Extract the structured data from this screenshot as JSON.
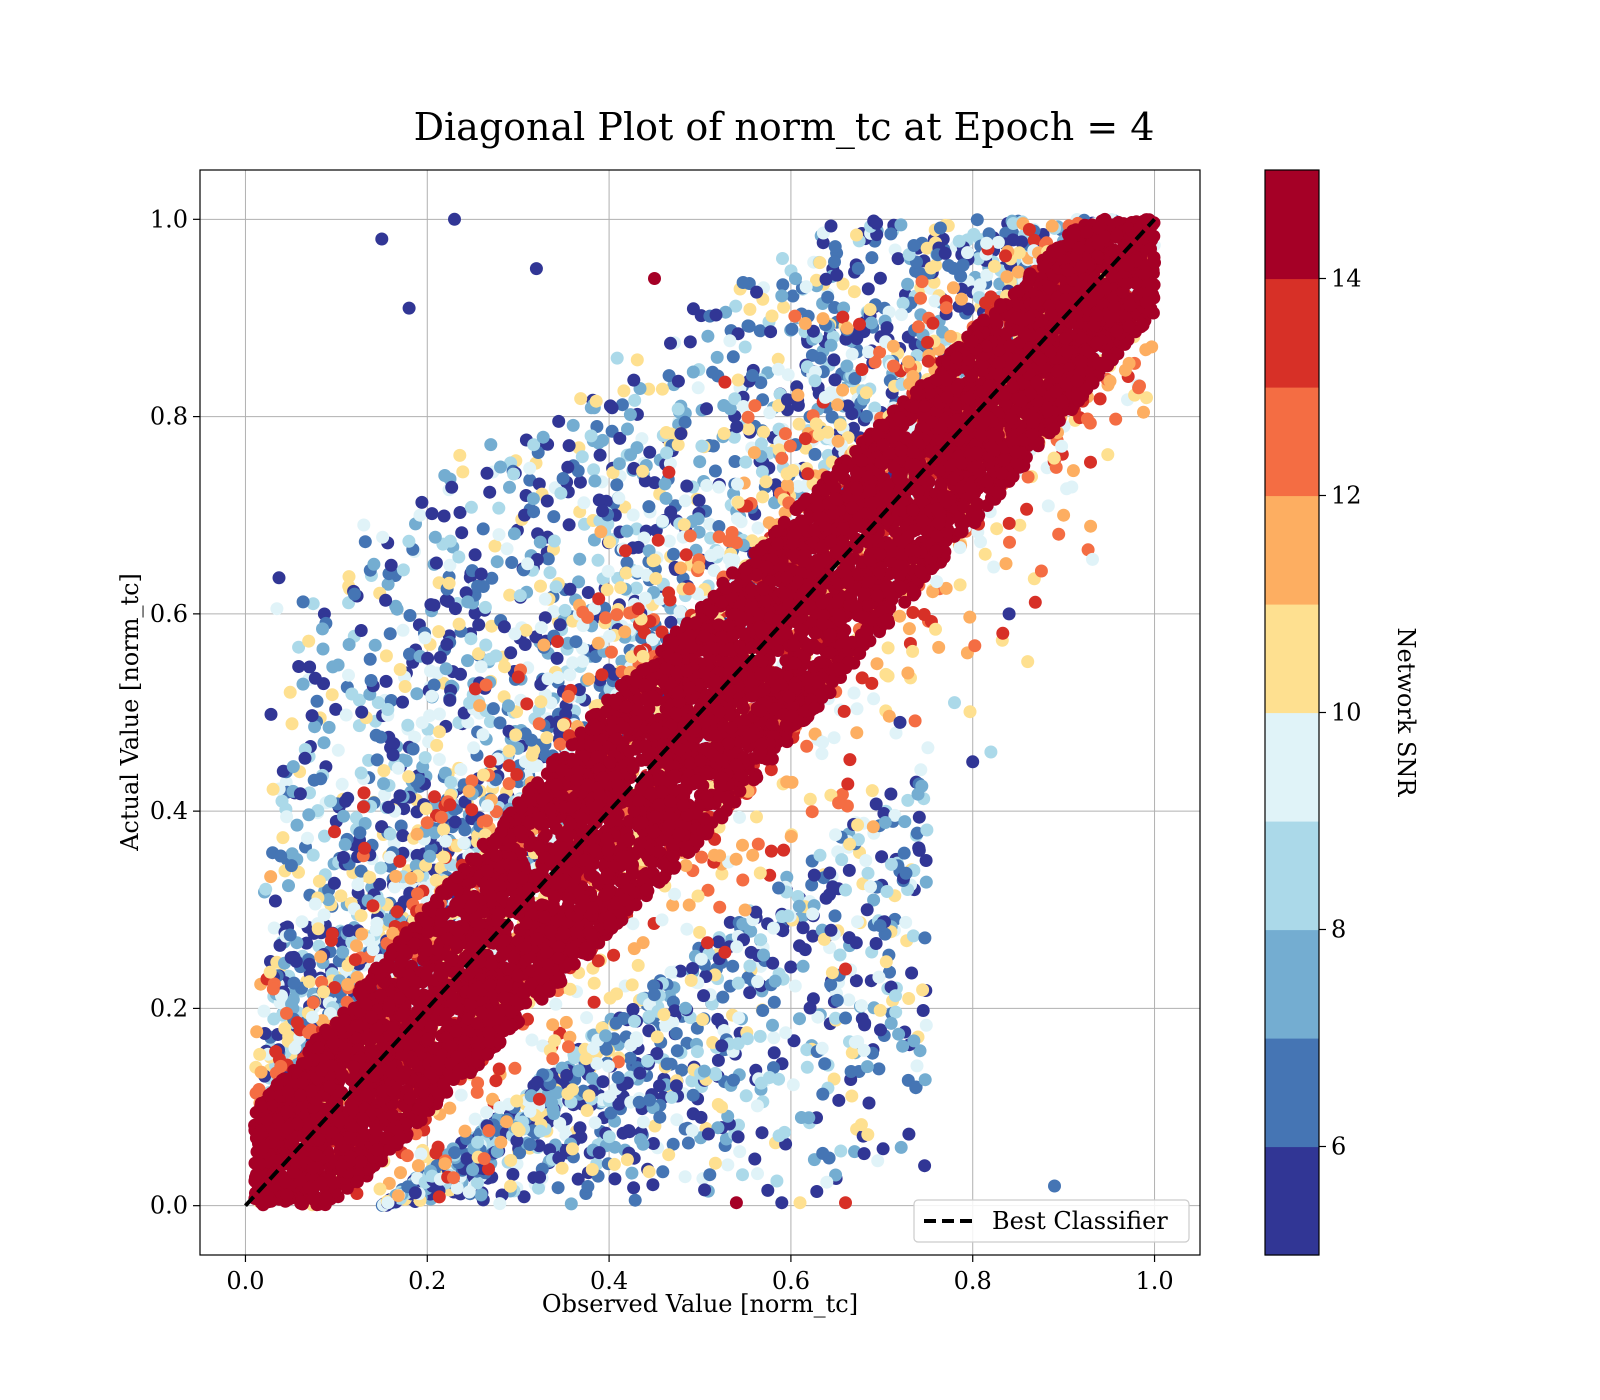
{
  "chart_data": {
    "type": "scatter",
    "title": "Diagonal Plot of norm_tc at Epoch = 4",
    "xlabel": "Observed Value [norm_tc]",
    "ylabel": "Actual Value [norm_tc]",
    "xlim": [
      -0.05,
      1.05
    ],
    "ylim": [
      -0.05,
      1.05
    ],
    "xticks": [
      "0.0",
      "0.2",
      "0.4",
      "0.6",
      "0.8",
      "1.0"
    ],
    "yticks": [
      "0.0",
      "0.2",
      "0.4",
      "0.6",
      "0.8",
      "1.0"
    ],
    "grid": true,
    "legend": {
      "position": "lower-right",
      "entries": [
        "Best Classifier"
      ]
    },
    "reference_line": {
      "name": "Best Classifier",
      "x": [
        0,
        1
      ],
      "y": [
        0,
        1
      ],
      "style": "dashed",
      "color": "#000000"
    },
    "colorbar": {
      "label": "Network SNR",
      "range": [
        5,
        15
      ],
      "ticks": [
        "6",
        "8",
        "10",
        "12",
        "14"
      ],
      "colors": [
        "#313695",
        "#4575b4",
        "#74add1",
        "#abd9e9",
        "#e0f3f8",
        "#fee090",
        "#fdae61",
        "#f46d43",
        "#d73027",
        "#a50026"
      ]
    },
    "points": [
      [
        0.1,
        0.1,
        15
      ],
      [
        0.2,
        0.2,
        15
      ],
      [
        0.3,
        0.3,
        15
      ],
      [
        0.4,
        0.4,
        15
      ],
      [
        0.5,
        0.5,
        15
      ],
      [
        0.6,
        0.6,
        15
      ],
      [
        0.7,
        0.7,
        15
      ],
      [
        0.8,
        0.8,
        15
      ],
      [
        0.9,
        0.9,
        15
      ],
      [
        0.15,
        0.98,
        5.5
      ],
      [
        0.18,
        0.91,
        5.5
      ],
      [
        0.12,
        0.62,
        6
      ],
      [
        0.11,
        0.41,
        5.5
      ],
      [
        0.84,
        0.6,
        5.5
      ],
      [
        0.89,
        0.02,
        6
      ],
      [
        0.9,
        0.7,
        11
      ],
      [
        0.8,
        0.45,
        5.5
      ],
      [
        0.66,
        0.32,
        8
      ],
      [
        0.66,
        0.24,
        13
      ],
      [
        0.61,
        0.003,
        10
      ],
      [
        0.54,
        0.003,
        15
      ],
      [
        0.66,
        0.003,
        13
      ],
      [
        0.23,
        1.0,
        5.5
      ],
      [
        0.32,
        0.95,
        5.5
      ],
      [
        0.45,
        0.94,
        15
      ],
      [
        0.59,
        0.003,
        5.5
      ],
      [
        0.72,
        0.49,
        5.5
      ],
      [
        0.78,
        0.51,
        8
      ],
      [
        0.82,
        0.46,
        8
      ]
    ]
  }
}
